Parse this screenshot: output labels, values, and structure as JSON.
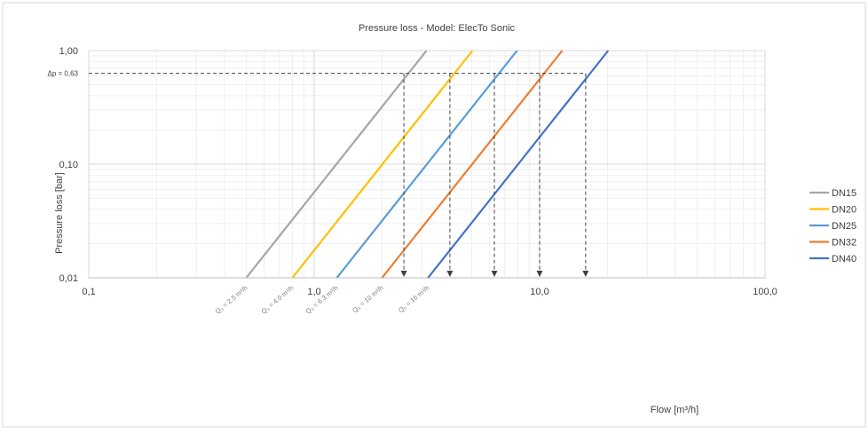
{
  "chart_data": {
    "type": "line",
    "title": "Pressure loss  - Model: ElecTo Sonic",
    "xlabel": "Flow [m³/h]",
    "ylabel": "Pressure loss  [bar]",
    "x_scale": "log",
    "y_scale": "log",
    "xlim": [
      0.1,
      100
    ],
    "ylim": [
      0.01,
      1
    ],
    "x_ticks": [
      {
        "v": 0.1,
        "label": "0,1"
      },
      {
        "v": 1,
        "label": "1,0"
      },
      {
        "v": 10,
        "label": "10,0"
      },
      {
        "v": 100,
        "label": "100,0"
      }
    ],
    "y_ticks": [
      {
        "v": 0.01,
        "label": "0,01"
      },
      {
        "v": 0.1,
        "label": "0,10"
      },
      {
        "v": 1,
        "label": "1,00"
      }
    ],
    "grid": true,
    "legend_position": "right",
    "series": [
      {
        "name": "DN15",
        "color": "#a5a5a5",
        "x": [
          0.5,
          3.15
        ],
        "y": [
          0.01,
          1.0
        ]
      },
      {
        "name": "DN20",
        "color": "#ffc000",
        "x": [
          0.8,
          5.04
        ],
        "y": [
          0.01,
          1.0
        ]
      },
      {
        "name": "DN25",
        "color": "#5b9bd5",
        "x": [
          1.26,
          7.94
        ],
        "y": [
          0.01,
          1.0
        ]
      },
      {
        "name": "DN32",
        "color": "#ed7d31",
        "x": [
          2.0,
          12.6
        ],
        "y": [
          0.01,
          1.0
        ]
      },
      {
        "name": "DN40",
        "color": "#4472c4",
        "x": [
          3.2,
          20.16
        ],
        "y": [
          0.01,
          1.0
        ]
      }
    ],
    "reference_line": {
      "label": "Δp = 0,63",
      "y": 0.63
    },
    "drop_lines": [
      {
        "x": 2.5,
        "label": "Q₃ = 2.5 m³/h"
      },
      {
        "x": 4.0,
        "label": "Q₃ = 4.0 m³/h"
      },
      {
        "x": 6.3,
        "label": "Q₃ = 6.3 m³/h"
      },
      {
        "x": 10.0,
        "label": "Q₃ = 10 m³/h"
      },
      {
        "x": 16.0,
        "label": "Q₃ = 16 m³/h"
      }
    ]
  }
}
